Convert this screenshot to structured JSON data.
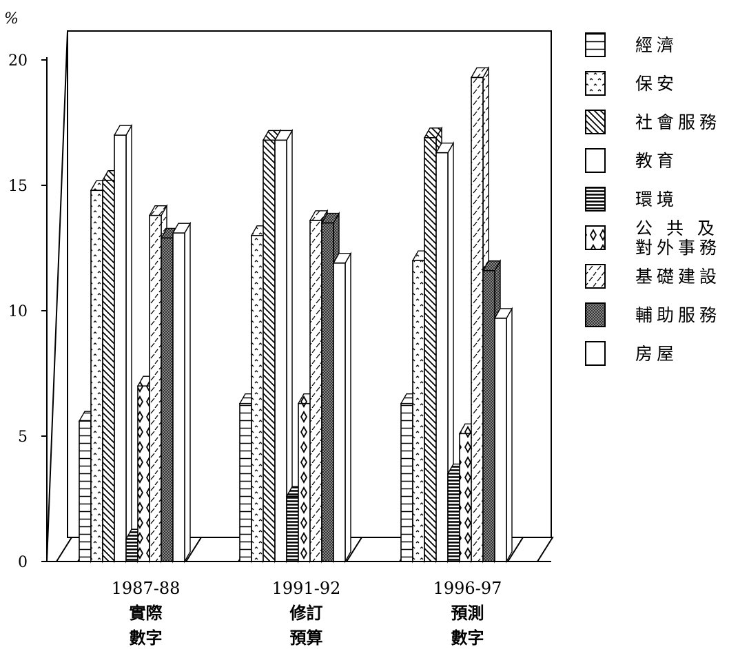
{
  "chart_data": {
    "type": "bar",
    "y_unit": "%",
    "ylim": [
      0,
      20
    ],
    "yticks": [
      0,
      5,
      10,
      15,
      20
    ],
    "grid": false,
    "legend_position": "right",
    "categories": [
      {
        "label": "1987-88",
        "line2": "實際",
        "line3": "數字"
      },
      {
        "label": "1991-92",
        "line2": "修訂",
        "line3": "預算"
      },
      {
        "label": "1996-97",
        "line2": "預測",
        "line3": "數字"
      }
    ],
    "series": [
      {
        "name": "經濟",
        "lines": [
          "經濟"
        ],
        "pattern": "hlines",
        "values": [
          5.6,
          6.3,
          6.3
        ]
      },
      {
        "name": "保安",
        "lines": [
          "保安"
        ],
        "pattern": "dots",
        "values": [
          14.8,
          13.0,
          12.0
        ]
      },
      {
        "name": "社會服務",
        "lines": [
          "社會服務"
        ],
        "pattern": "diag",
        "values": [
          15.2,
          16.8,
          16.9
        ]
      },
      {
        "name": "教育",
        "lines": [
          "教育"
        ],
        "pattern": "blank",
        "values": [
          17.0,
          16.8,
          16.3
        ]
      },
      {
        "name": "環境",
        "lines": [
          "環境"
        ],
        "pattern": "dense",
        "values": [
          0.9,
          2.6,
          3.5
        ]
      },
      {
        "name": "公共及對外事務",
        "lines": [
          "公 共 及",
          "對外事務"
        ],
        "pattern": "diamond",
        "values": [
          7.0,
          6.3,
          5.1
        ]
      },
      {
        "name": "基礎建設",
        "lines": [
          "基礎建設"
        ],
        "pattern": "dash",
        "values": [
          13.8,
          13.6,
          19.3
        ]
      },
      {
        "name": "輔助服務",
        "lines": [
          "輔助服務"
        ],
        "pattern": "shade",
        "values": [
          12.9,
          13.5,
          11.6
        ]
      },
      {
        "name": "房屋",
        "lines": [
          "房屋"
        ],
        "pattern": "blank",
        "values": [
          13.1,
          11.9,
          9.7
        ]
      }
    ]
  }
}
